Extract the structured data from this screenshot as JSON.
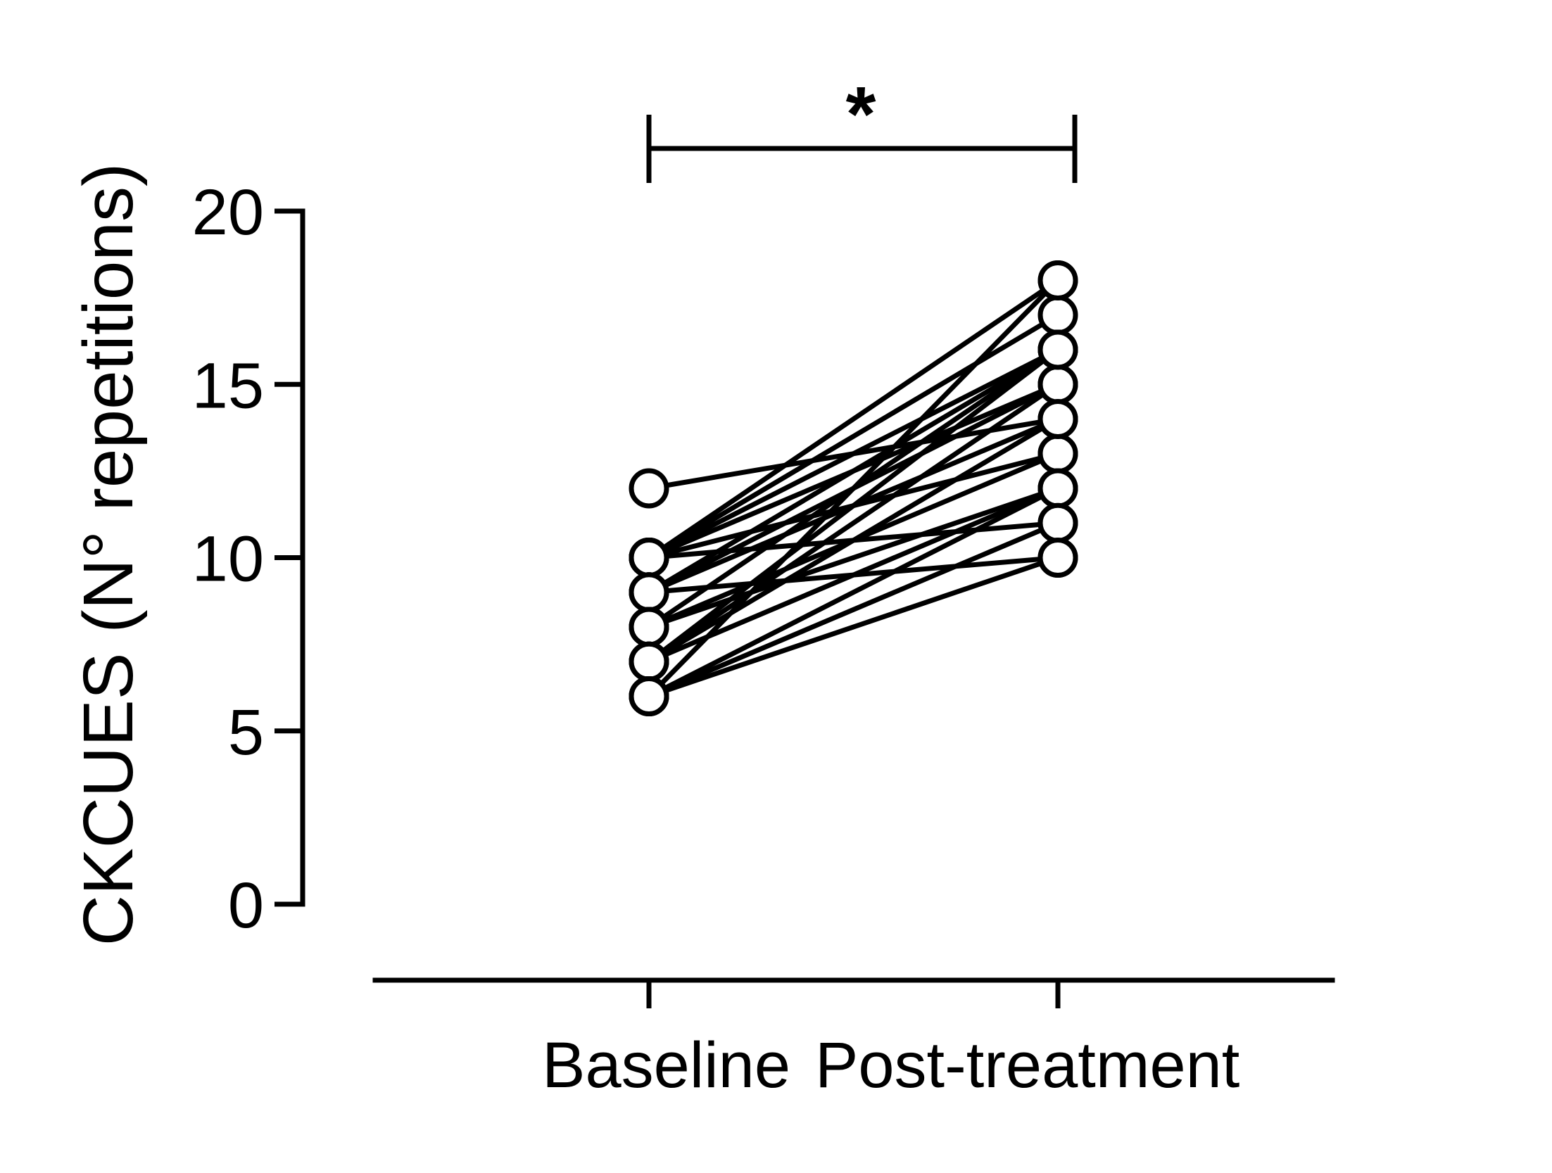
{
  "chart_data": {
    "type": "line",
    "categories": [
      "Baseline",
      "Post-treatment"
    ],
    "ylabel": "CKCUES (N° repetitions)",
    "xlabel": "",
    "ylim": [
      0,
      20
    ],
    "yticks": [
      0,
      5,
      10,
      15,
      20
    ],
    "grid": false,
    "significance": {
      "from": "Baseline",
      "to": "Post-treatment",
      "label": "*"
    },
    "pairs": [
      [
        12,
        14
      ],
      [
        10,
        18
      ],
      [
        10,
        17
      ],
      [
        10,
        16
      ],
      [
        10,
        15
      ],
      [
        10,
        13
      ],
      [
        10,
        11
      ],
      [
        9,
        16
      ],
      [
        9,
        15
      ],
      [
        9,
        14
      ],
      [
        9,
        10
      ],
      [
        8,
        16
      ],
      [
        8,
        12
      ],
      [
        8,
        13
      ],
      [
        7,
        15
      ],
      [
        7,
        14
      ],
      [
        7,
        12
      ],
      [
        7,
        16
      ],
      [
        6,
        18
      ],
      [
        6,
        12
      ],
      [
        6,
        11
      ],
      [
        6,
        10
      ]
    ]
  }
}
